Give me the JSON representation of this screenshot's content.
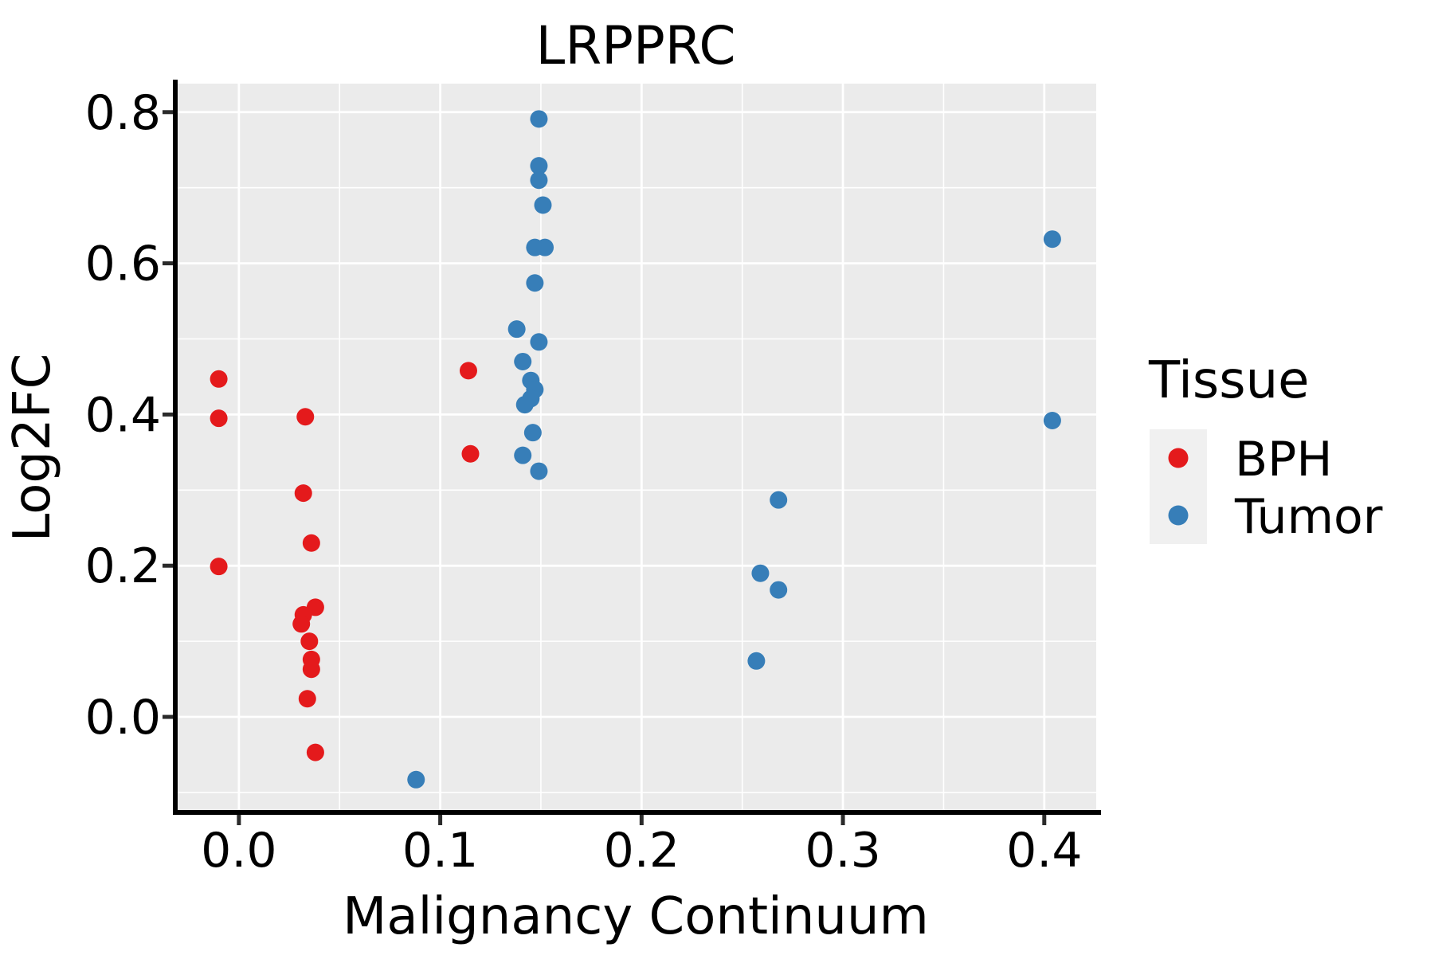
{
  "chart_data": {
    "type": "scatter",
    "title": "LRPPRC",
    "xlabel": "Malignancy Continuum",
    "ylabel": "Log2FC",
    "xlim": [
      -0.0316,
      0.4258
    ],
    "ylim": [
      -0.1264,
      0.8377
    ],
    "x_major_ticks": [
      0.0,
      0.1,
      0.2,
      0.3,
      0.4
    ],
    "x_tick_labels": [
      "0.0",
      "0.1",
      "0.2",
      "0.3",
      "0.4"
    ],
    "x_minor_ticks": [
      0.05,
      0.15,
      0.25,
      0.35
    ],
    "y_major_ticks": [
      0.0,
      0.2,
      0.4,
      0.6,
      0.8
    ],
    "y_tick_labels": [
      "0.0",
      "0.2",
      "0.4",
      "0.6",
      "0.8"
    ],
    "y_minor_ticks": [
      -0.1,
      0.1,
      0.3,
      0.5,
      0.7
    ],
    "grid": true,
    "legend_title": "Tissue",
    "legend_position": "right",
    "series": [
      {
        "name": "BPH",
        "color": "#e41a1c",
        "points": [
          [
            -0.01,
            0.447
          ],
          [
            -0.01,
            0.395
          ],
          [
            -0.01,
            0.199
          ],
          [
            0.033,
            0.397
          ],
          [
            0.032,
            0.296
          ],
          [
            0.036,
            0.23
          ],
          [
            0.038,
            0.145
          ],
          [
            0.032,
            0.135
          ],
          [
            0.031,
            0.123
          ],
          [
            0.035,
            0.1
          ],
          [
            0.036,
            0.076
          ],
          [
            0.036,
            0.063
          ],
          [
            0.034,
            0.024
          ],
          [
            0.038,
            -0.047
          ],
          [
            0.114,
            0.458
          ],
          [
            0.115,
            0.348
          ]
        ]
      },
      {
        "name": "Tumor",
        "color": "#377eb8",
        "points": [
          [
            0.088,
            -0.083
          ],
          [
            0.149,
            0.791
          ],
          [
            0.149,
            0.729
          ],
          [
            0.149,
            0.71
          ],
          [
            0.151,
            0.677
          ],
          [
            0.147,
            0.621
          ],
          [
            0.152,
            0.621
          ],
          [
            0.147,
            0.574
          ],
          [
            0.138,
            0.513
          ],
          [
            0.149,
            0.496
          ],
          [
            0.141,
            0.47
          ],
          [
            0.145,
            0.445
          ],
          [
            0.147,
            0.433
          ],
          [
            0.145,
            0.421
          ],
          [
            0.142,
            0.413
          ],
          [
            0.146,
            0.376
          ],
          [
            0.141,
            0.346
          ],
          [
            0.149,
            0.325
          ],
          [
            0.268,
            0.287
          ],
          [
            0.259,
            0.19
          ],
          [
            0.268,
            0.168
          ],
          [
            0.257,
            0.074
          ],
          [
            0.404,
            0.632
          ],
          [
            0.404,
            0.392
          ]
        ]
      }
    ]
  },
  "colors": {
    "panel_bg": "#ebebeb",
    "grid": "#ffffff",
    "axis_line": "#000000",
    "tick_mark": "#2b2b2b",
    "text": "#000000",
    "legend_key_bg": "#f0f0f0",
    "bph": "#e41a1c",
    "tumor": "#377eb8"
  }
}
